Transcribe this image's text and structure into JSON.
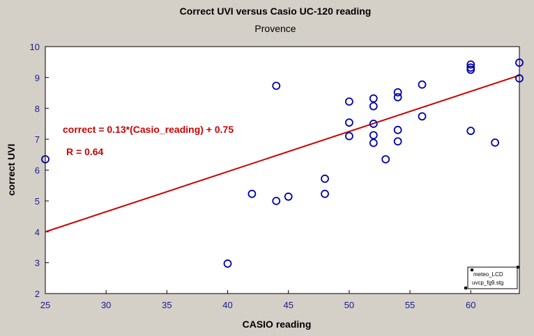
{
  "chart_data": {
    "type": "scatter",
    "title": "Correct UVI versus Casio UC-120 reading",
    "subtitle": "Provence",
    "xlabel": "CASIO reading",
    "ylabel": "correct UVI",
    "xlim": [
      25,
      64
    ],
    "ylim": [
      2,
      10
    ],
    "x_ticks": [
      25,
      30,
      35,
      40,
      45,
      50,
      55,
      60
    ],
    "y_ticks": [
      2,
      3,
      4,
      5,
      6,
      7,
      8,
      9,
      10
    ],
    "grid": false,
    "points": [
      {
        "x": 25,
        "y": 6.35
      },
      {
        "x": 40,
        "y": 2.97
      },
      {
        "x": 42,
        "y": 5.23
      },
      {
        "x": 44,
        "y": 5.0
      },
      {
        "x": 44,
        "y": 8.73
      },
      {
        "x": 45,
        "y": 5.14
      },
      {
        "x": 48,
        "y": 5.72
      },
      {
        "x": 48,
        "y": 5.23
      },
      {
        "x": 50,
        "y": 8.22
      },
      {
        "x": 50,
        "y": 7.54
      },
      {
        "x": 50,
        "y": 7.1
      },
      {
        "x": 52,
        "y": 8.32
      },
      {
        "x": 52,
        "y": 8.07
      },
      {
        "x": 52,
        "y": 7.5
      },
      {
        "x": 52,
        "y": 7.13
      },
      {
        "x": 52,
        "y": 6.88
      },
      {
        "x": 53,
        "y": 6.35
      },
      {
        "x": 54,
        "y": 8.52
      },
      {
        "x": 54,
        "y": 8.36
      },
      {
        "x": 54,
        "y": 7.3
      },
      {
        "x": 54,
        "y": 6.93
      },
      {
        "x": 56,
        "y": 8.77
      },
      {
        "x": 56,
        "y": 7.74
      },
      {
        "x": 60,
        "y": 9.42
      },
      {
        "x": 60,
        "y": 9.32
      },
      {
        "x": 60,
        "y": 9.25
      },
      {
        "x": 60,
        "y": 7.27
      },
      {
        "x": 62,
        "y": 6.89
      },
      {
        "x": 64,
        "y": 9.48
      },
      {
        "x": 64,
        "y": 8.97
      }
    ],
    "fit_line": {
      "slope": 0.13,
      "intercept": 0.75,
      "x_range": [
        25,
        64
      ]
    },
    "annotations": {
      "equation": "correct = 0.13*(Casio_reading) + 0.75",
      "r_value": "R = 0.64"
    },
    "tag_lines": [
      "meteo_LCD",
      "uvcp_fg9.stg"
    ],
    "colors": {
      "background": "#d4d0c8",
      "plot_bg": "#ffffff",
      "points": "#0000aa",
      "fit_line": "#cc0000",
      "annotation": "#cc0000",
      "tick_labels": "#1a1a8c"
    }
  }
}
